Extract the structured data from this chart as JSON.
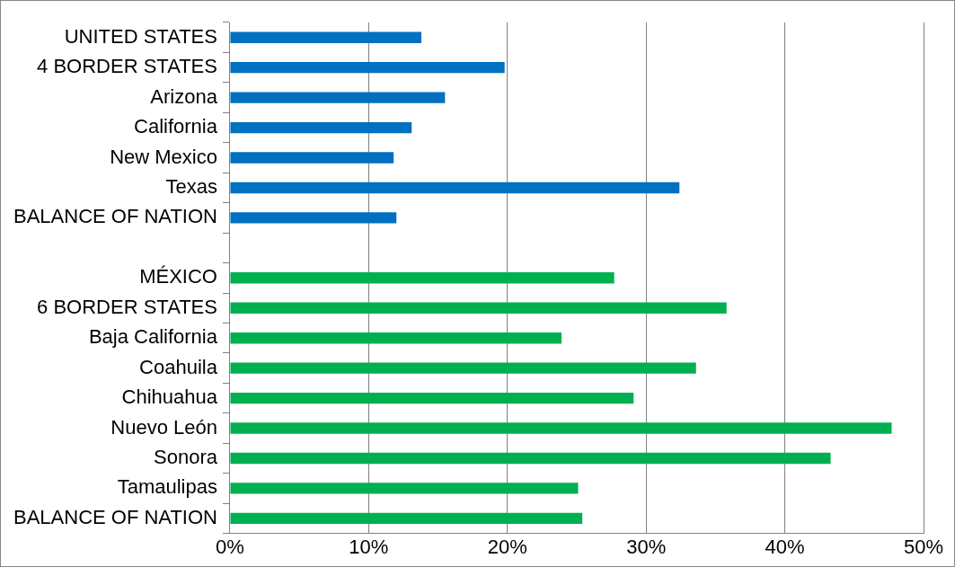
{
  "chart_data": {
    "type": "bar",
    "orientation": "horizontal",
    "categories": [
      "UNITED STATES",
      "4 BORDER STATES",
      "Arizona",
      "California",
      "New Mexico",
      "Texas",
      "BALANCE OF NATION",
      null,
      "MÉXICO",
      "6 BORDER STATES",
      "Baja California",
      "Coahuila",
      "Chihuahua",
      "Nuevo León",
      "Sonora",
      "Tamaulipas",
      "BALANCE OF NATION"
    ],
    "values": [
      13.8,
      19.8,
      15.5,
      13.1,
      11.8,
      32.4,
      12.0,
      null,
      27.7,
      35.8,
      23.9,
      33.6,
      29.1,
      47.7,
      43.3,
      25.1,
      25.4
    ],
    "colors": [
      "#0070c0",
      "#0070c0",
      "#0070c0",
      "#0070c0",
      "#0070c0",
      "#0070c0",
      "#0070c0",
      "#0070c0",
      "#00b050",
      "#00b050",
      "#00b050",
      "#00b050",
      "#00b050",
      "#00b050",
      "#00b050",
      "#00b050",
      "#00b050"
    ],
    "xlim": [
      0,
      50
    ],
    "xticks": [
      {
        "value": 0,
        "label": "0%"
      },
      {
        "value": 10,
        "label": "10%"
      },
      {
        "value": 20,
        "label": "20%"
      },
      {
        "value": 30,
        "label": "30%"
      },
      {
        "value": 40,
        "label": "40%"
      },
      {
        "value": 50,
        "label": "50%"
      }
    ],
    "grid": "x",
    "legend": false
  }
}
